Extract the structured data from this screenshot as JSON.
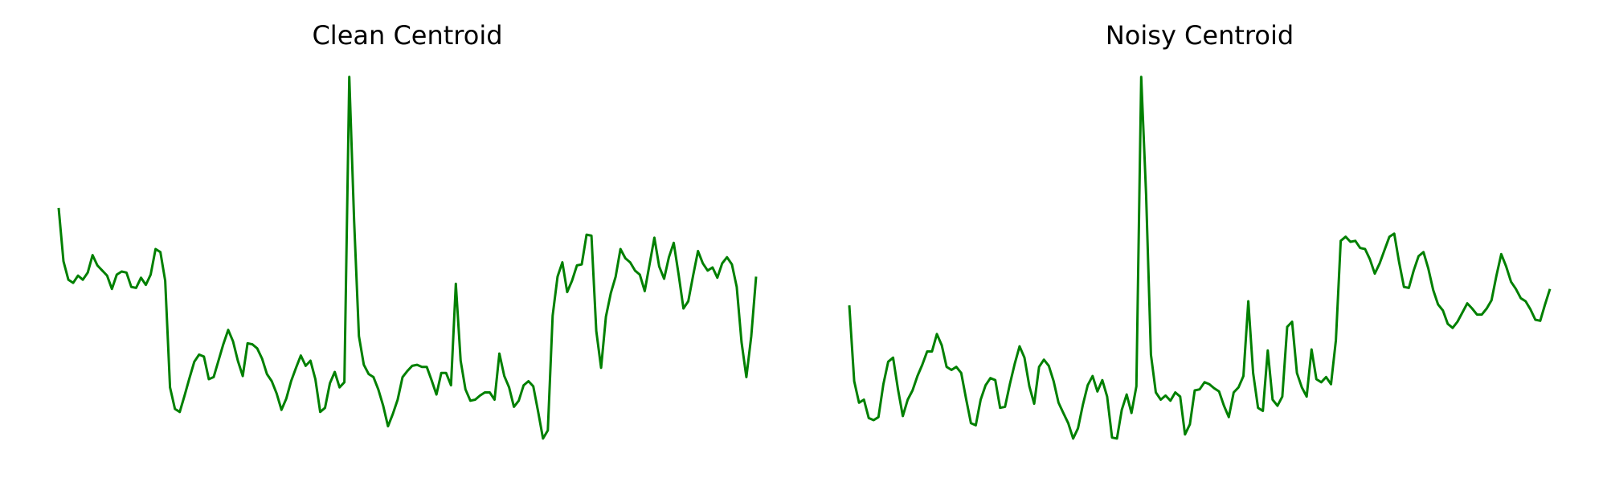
{
  "chart_data": [
    {
      "type": "line",
      "title": "Clean Centroid",
      "color": "#008000",
      "ylim": [
        0,
        360
      ],
      "values": [
        227,
        175,
        157,
        154,
        161,
        157,
        164,
        181,
        171,
        166,
        161,
        148,
        162,
        165,
        164,
        150,
        149,
        159,
        152,
        162,
        187,
        184,
        156,
        52,
        31,
        28,
        44,
        61,
        77,
        84,
        82,
        60,
        62,
        78,
        94,
        108,
        97,
        78,
        63,
        95,
        94,
        90,
        80,
        65,
        58,
        46,
        30,
        41,
        58,
        71,
        83,
        73,
        78,
        60,
        28,
        32,
        56,
        67,
        52,
        57,
        355,
        215,
        102,
        74,
        65,
        62,
        50,
        34,
        14,
        26,
        40,
        62,
        68,
        73,
        74,
        72,
        72,
        59,
        45,
        66,
        66,
        54,
        153,
        78,
        50,
        39,
        40,
        44,
        47,
        47,
        40,
        85,
        63,
        52,
        33,
        39,
        54,
        58,
        53,
        28,
        2,
        10,
        122,
        160,
        174,
        145,
        156,
        171,
        172,
        201,
        200,
        107,
        71,
        121,
        144,
        160,
        187,
        178,
        174,
        166,
        162,
        146,
        172,
        198,
        170,
        158,
        179,
        193,
        162,
        129,
        136,
        161,
        185,
        173,
        166,
        169,
        159,
        173,
        179,
        172,
        150,
        96,
        62,
        102,
        160
      ]
    },
    {
      "type": "line",
      "title": "Noisy Centroid",
      "color": "#008000",
      "ylim": [
        0,
        360
      ],
      "values": [
        132,
        58,
        37,
        40,
        22,
        20,
        23,
        55,
        77,
        81,
        50,
        24,
        40,
        49,
        63,
        74,
        87,
        87,
        104,
        93,
        72,
        69,
        72,
        66,
        41,
        17,
        15,
        40,
        54,
        61,
        59,
        32,
        33,
        55,
        75,
        92,
        81,
        53,
        36,
        72,
        79,
        73,
        58,
        37,
        27,
        17,
        2,
        12,
        35,
        54,
        63,
        48,
        59,
        43,
        3,
        2,
        30,
        45,
        27,
        53,
        355,
        240,
        84,
        47,
        40,
        44,
        39,
        47,
        43,
        6,
        16,
        49,
        50,
        57,
        55,
        51,
        48,
        34,
        23,
        47,
        52,
        63,
        136,
        66,
        32,
        29,
        88,
        40,
        34,
        43,
        111,
        116,
        66,
        52,
        43,
        89,
        60,
        57,
        62,
        55,
        98,
        195,
        199,
        194,
        195,
        188,
        187,
        177,
        163,
        173,
        186,
        199,
        202,
        174,
        150,
        149,
        166,
        180,
        184,
        168,
        147,
        133,
        127,
        114,
        110,
        116,
        125,
        134,
        129,
        123,
        123,
        129,
        137,
        161,
        182,
        170,
        155,
        148,
        139,
        136,
        128,
        118,
        117,
        133,
        148
      ]
    }
  ]
}
